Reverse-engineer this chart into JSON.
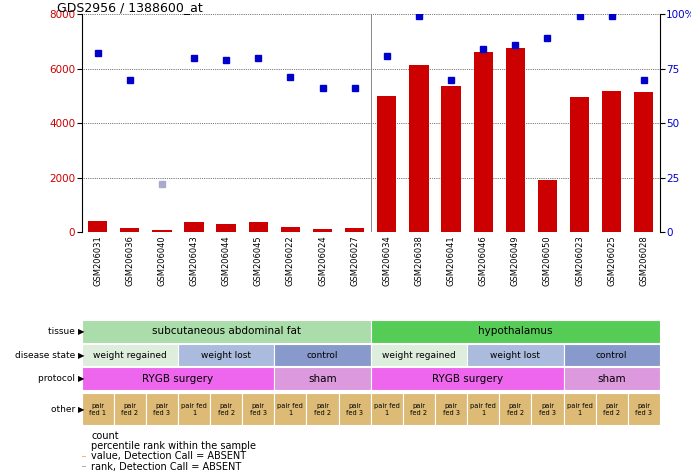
{
  "title": "GDS2956 / 1388600_at",
  "samples": [
    "GSM206031",
    "GSM206036",
    "GSM206040",
    "GSM206043",
    "GSM206044",
    "GSM206045",
    "GSM206022",
    "GSM206024",
    "GSM206027",
    "GSM206034",
    "GSM206038",
    "GSM206041",
    "GSM206046",
    "GSM206049",
    "GSM206050",
    "GSM206023",
    "GSM206025",
    "GSM206028"
  ],
  "count_values": [
    400,
    150,
    70,
    370,
    290,
    390,
    200,
    130,
    150,
    5000,
    6150,
    5350,
    6600,
    6750,
    1900,
    4950,
    5200,
    5150
  ],
  "count_absent": [
    false,
    false,
    false,
    false,
    false,
    false,
    false,
    false,
    false,
    false,
    false,
    false,
    false,
    false,
    false,
    false,
    false,
    false
  ],
  "percentile_values": [
    82,
    70,
    22,
    80,
    79,
    80,
    71,
    66,
    66,
    81,
    99,
    70,
    84,
    86,
    89,
    99,
    99,
    70
  ],
  "percentile_absent": [
    false,
    false,
    true,
    false,
    false,
    false,
    false,
    false,
    false,
    false,
    false,
    false,
    false,
    false,
    false,
    false,
    false,
    false
  ],
  "ylim_left": [
    0,
    8000
  ],
  "ylim_right": [
    0,
    100
  ],
  "yticks_left": [
    0,
    2000,
    4000,
    6000,
    8000
  ],
  "yticks_right": [
    0,
    25,
    50,
    75,
    100
  ],
  "bar_color": "#cc0000",
  "bar_absent_color": "#ffaa88",
  "dot_color": "#0000cc",
  "dot_absent_color": "#aaaacc",
  "tissue_groups": [
    {
      "label": "subcutaneous abdominal fat",
      "start": 0,
      "end": 9,
      "color": "#aaddaa"
    },
    {
      "label": "hypothalamus",
      "start": 9,
      "end": 18,
      "color": "#55cc55"
    }
  ],
  "disease_groups": [
    {
      "label": "weight regained",
      "start": 0,
      "end": 3,
      "color": "#ddeedd"
    },
    {
      "label": "weight lost",
      "start": 3,
      "end": 6,
      "color": "#aabbdd"
    },
    {
      "label": "control",
      "start": 6,
      "end": 9,
      "color": "#8899cc"
    },
    {
      "label": "weight regained",
      "start": 9,
      "end": 12,
      "color": "#ddeedd"
    },
    {
      "label": "weight lost",
      "start": 12,
      "end": 15,
      "color": "#aabbdd"
    },
    {
      "label": "control",
      "start": 15,
      "end": 18,
      "color": "#8899cc"
    }
  ],
  "protocol_groups": [
    {
      "label": "RYGB surgery",
      "start": 0,
      "end": 6,
      "color": "#ee66ee"
    },
    {
      "label": "sham",
      "start": 6,
      "end": 9,
      "color": "#dd99dd"
    },
    {
      "label": "RYGB surgery",
      "start": 9,
      "end": 15,
      "color": "#ee66ee"
    },
    {
      "label": "sham",
      "start": 15,
      "end": 18,
      "color": "#dd99dd"
    }
  ],
  "other_labels": [
    "pair\nfed 1",
    "pair\nfed 2",
    "pair\nfed 3",
    "pair fed\n1",
    "pair\nfed 2",
    "pair\nfed 3",
    "pair fed\n1",
    "pair\nfed 2",
    "pair\nfed 3",
    "pair fed\n1",
    "pair\nfed 2",
    "pair\nfed 3",
    "pair fed\n1",
    "pair\nfed 2",
    "pair\nfed 3",
    "pair fed\n1",
    "pair\nfed 2",
    "pair\nfed 3"
  ],
  "other_color": "#ddbb77",
  "legend_items": [
    {
      "label": "count",
      "color": "#cc0000"
    },
    {
      "label": "percentile rank within the sample",
      "color": "#0000cc"
    },
    {
      "label": "value, Detection Call = ABSENT",
      "color": "#ffaa88"
    },
    {
      "label": "rank, Detection Call = ABSENT",
      "color": "#aaaacc"
    }
  ],
  "row_labels": [
    "tissue",
    "disease state",
    "protocol",
    "other"
  ]
}
